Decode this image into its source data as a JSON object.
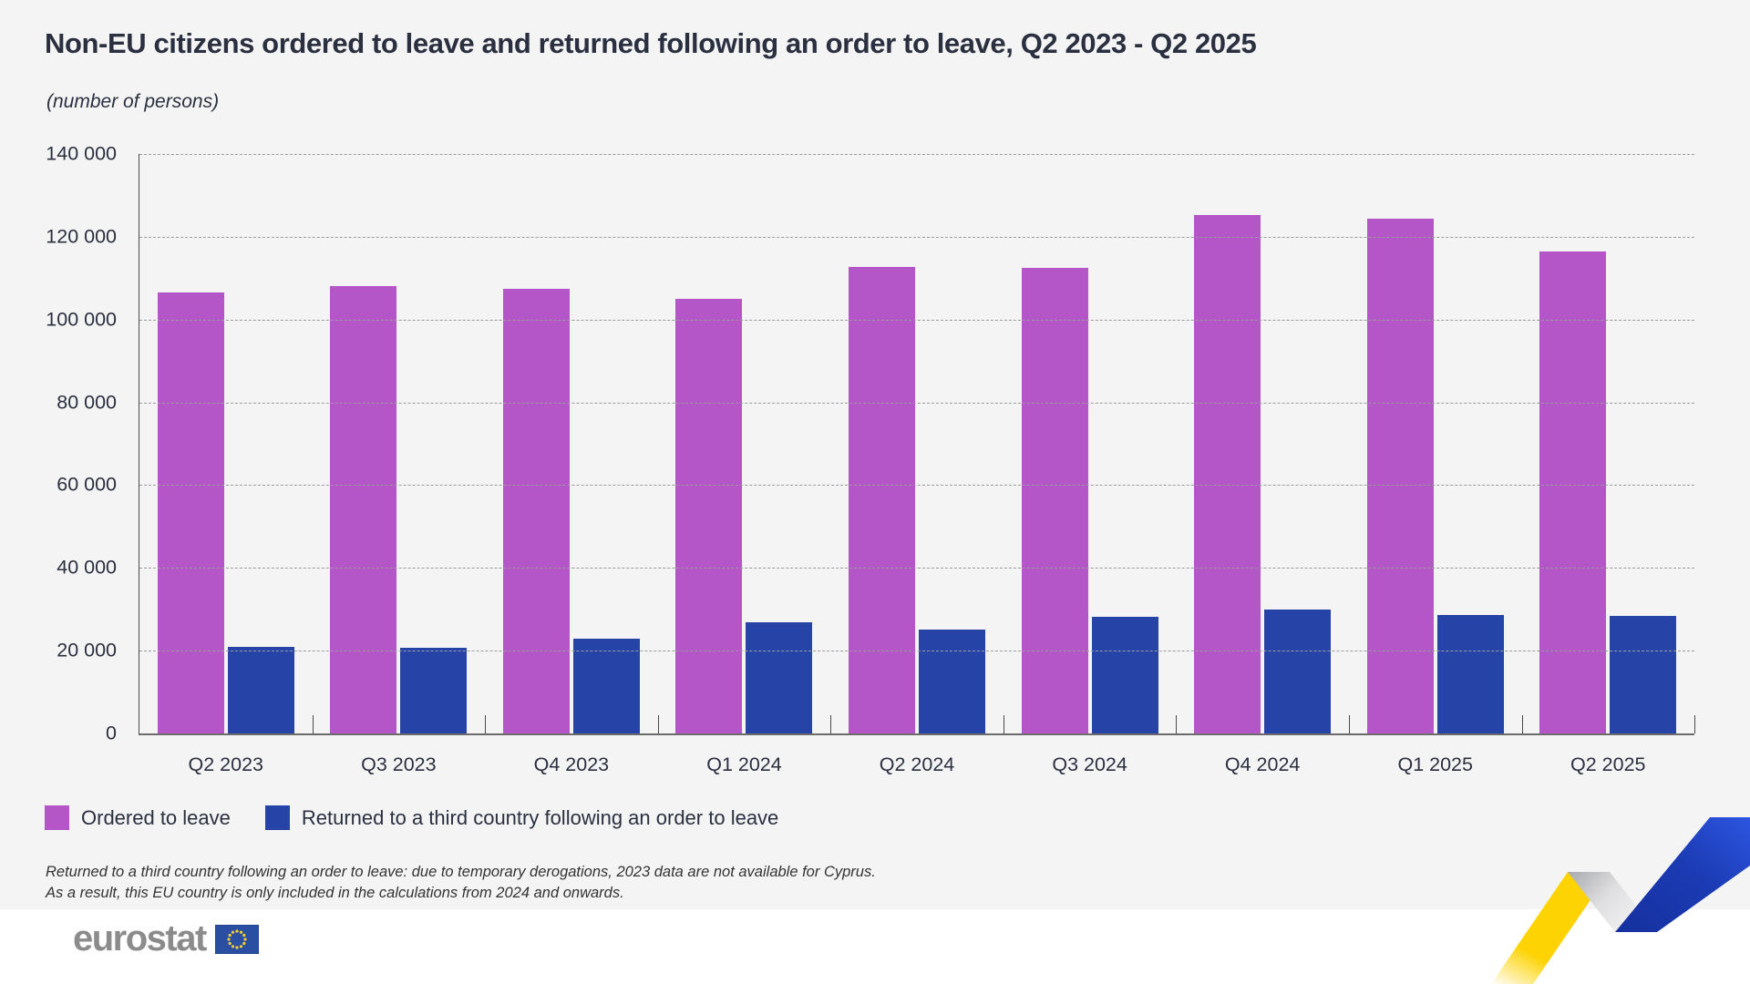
{
  "header": {
    "title": "Non-EU citizens ordered to leave and returned following an order to leave, Q2 2023 - Q2 2025",
    "subtitle": "(number of persons)"
  },
  "chart_data": {
    "type": "bar",
    "title": "Non-EU citizens ordered to leave and returned following an order to leave, Q2 2023 - Q2 2025",
    "unit_label": "(number of persons)",
    "categories": [
      "Q2 2023",
      "Q3 2023",
      "Q4 2023",
      "Q1 2024",
      "Q2 2024",
      "Q3 2024",
      "Q4 2024",
      "Q1 2025",
      "Q2 2025"
    ],
    "series": [
      {
        "name": "Ordered to leave",
        "color": "#b455c8",
        "values": [
          106500,
          108000,
          107500,
          104900,
          112600,
          112400,
          125200,
          124300,
          116500
        ]
      },
      {
        "name": "Returned to a third country following an order to leave",
        "color": "#2644a7",
        "values": [
          20900,
          20600,
          23000,
          26900,
          25100,
          28100,
          30000,
          28700,
          28400
        ]
      }
    ],
    "xlabel": "",
    "ylabel": "",
    "ylim": [
      0,
      140000
    ],
    "yticks": [
      "140 000",
      "120 000",
      "100 000",
      "80 000",
      "60 000",
      "40 000",
      "20 000",
      "0"
    ],
    "grid": "horizontal-dashed",
    "legend_position": "bottom-left"
  },
  "legend": {
    "items": [
      {
        "label": "Ordered to leave",
        "color": "#b455c8"
      },
      {
        "label": "Returned to a third country following an order to leave",
        "color": "#2644a7"
      }
    ]
  },
  "footnote": {
    "line1": "Returned to a third country following an order to leave: due to temporary derogations, 2023 data are not available for Cyprus.",
    "line2": "As a result, this EU country is only included in the calculations from 2024 and onwards."
  },
  "footer": {
    "logo_text": "eurostat"
  },
  "colors": {
    "background": "#f4f4f4",
    "footer_background": "#ffffff",
    "ordered_to_leave": "#b455c8",
    "returned": "#2644a7",
    "text": "#2b3040",
    "eu_flag_blue": "#2a4fa2",
    "eu_flag_stars": "#f8d12e",
    "ribbon_yellow": "#fdd303",
    "ribbon_blue_light": "#2d55e0",
    "ribbon_blue_dark": "#1b2f9e"
  }
}
